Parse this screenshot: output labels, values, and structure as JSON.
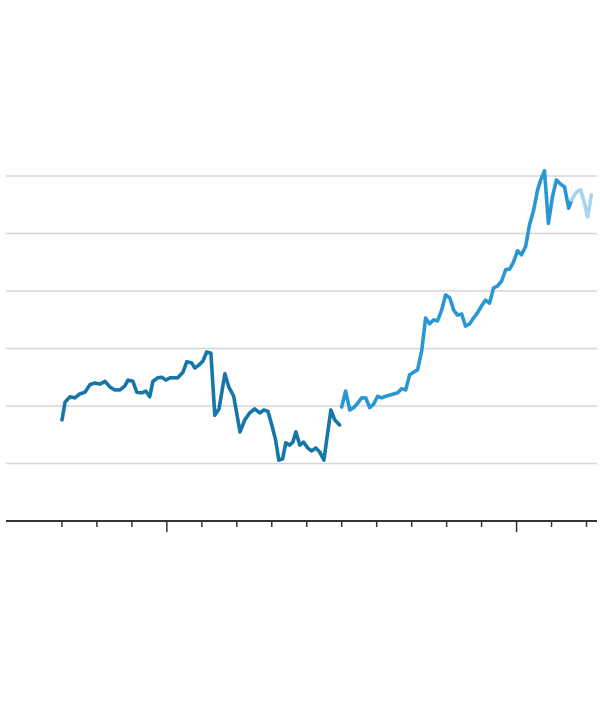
{
  "chart_data": {
    "type": "line",
    "xlim": [
      -1.6,
      15.3
    ],
    "xticks": [
      0,
      1,
      2,
      4,
      5,
      6,
      7,
      8,
      9,
      10,
      11,
      12,
      14,
      15
    ],
    "major_xticks": [
      3,
      13
    ],
    "ylim": [
      0,
      6
    ],
    "yticks": [
      0,
      1,
      2,
      3,
      4,
      5,
      6
    ],
    "grid": true,
    "series": [
      {
        "color": "#1676a8",
        "x": [
          0,
          0.09,
          0.23,
          0.37,
          0.51,
          0.66,
          0.8,
          0.94,
          1.09,
          1.23,
          1.37,
          1.51,
          1.66,
          1.8,
          1.89,
          2.03,
          2.14,
          2.29,
          2.4,
          2.51,
          2.6,
          2.74,
          2.86,
          2.97,
          3.09,
          3.31,
          3.46,
          3.57,
          3.71,
          3.8,
          3.91,
          4.03,
          4.14,
          4.26,
          4.37,
          4.49,
          4.57,
          4.66,
          4.77,
          4.91,
          5.09,
          5.23,
          5.37,
          5.51,
          5.66,
          5.77,
          5.89,
          6,
          6.11,
          6.2,
          6.31,
          6.4,
          6.51,
          6.6,
          6.69,
          6.8,
          6.91,
          7.03,
          7.14,
          7.26,
          7.37,
          7.49,
          7.57,
          7.69,
          7.8,
          7.94
        ],
        "values": [
          1.76,
          2.07,
          2.16,
          2.14,
          2.21,
          2.24,
          2.37,
          2.4,
          2.38,
          2.43,
          2.33,
          2.28,
          2.28,
          2.35,
          2.45,
          2.43,
          2.24,
          2.23,
          2.26,
          2.16,
          2.43,
          2.49,
          2.5,
          2.45,
          2.49,
          2.49,
          2.59,
          2.77,
          2.75,
          2.66,
          2.71,
          2.78,
          2.94,
          2.92,
          1.84,
          1.95,
          2.24,
          2.56,
          2.33,
          2.17,
          1.55,
          1.76,
          1.88,
          1.95,
          1.88,
          1.93,
          1.91,
          1.67,
          1.41,
          1.06,
          1.08,
          1.36,
          1.32,
          1.37,
          1.55,
          1.32,
          1.37,
          1.27,
          1.22,
          1.27,
          1.2,
          1.06,
          1.41,
          1.93,
          1.76,
          1.67
        ]
      },
      {
        "color": "#2897d3",
        "x": [
          8,
          8.11,
          8.23,
          8.34,
          8.46,
          8.57,
          8.69,
          8.8,
          8.91,
          9.03,
          9.14,
          9.26,
          9.37,
          9.49,
          9.6,
          9.71,
          9.83,
          9.94,
          10.06,
          10.17,
          10.29,
          10.4,
          10.51,
          10.63,
          10.74,
          10.86,
          10.97,
          11.09,
          11.2,
          11.31,
          11.43,
          11.54,
          11.66,
          11.77,
          11.89,
          12,
          12.11,
          12.23,
          12.34,
          12.46,
          12.57,
          12.69,
          12.8,
          12.91,
          13.03,
          13.14,
          13.26,
          13.37,
          13.49,
          13.6,
          13.69,
          13.8,
          13.91,
          14.03,
          14.14,
          14.26,
          14.37,
          14.49,
          14.57
        ],
        "values": [
          1.98,
          2.26,
          1.93,
          1.97,
          2.05,
          2.14,
          2.14,
          1.97,
          2.03,
          2.17,
          2.14,
          2.17,
          2.19,
          2.21,
          2.23,
          2.3,
          2.28,
          2.54,
          2.59,
          2.63,
          2.97,
          3.53,
          3.43,
          3.5,
          3.48,
          3.67,
          3.93,
          3.88,
          3.67,
          3.58,
          3.6,
          3.39,
          3.43,
          3.53,
          3.63,
          3.74,
          3.84,
          3.79,
          4.05,
          4.09,
          4.17,
          4.37,
          4.38,
          4.5,
          4.7,
          4.63,
          4.78,
          5.15,
          5.41,
          5.76,
          5.93,
          6.09,
          5.18,
          5.65,
          5.93,
          5.86,
          5.81,
          5.44,
          5.58
        ]
      },
      {
        "color": "#a6d3ef",
        "x": [
          14.57,
          14.71,
          14.83,
          14.94,
          15.03,
          15.14
        ],
        "values": [
          5.58,
          5.72,
          5.76,
          5.53,
          5.29,
          5.67
        ]
      }
    ]
  }
}
